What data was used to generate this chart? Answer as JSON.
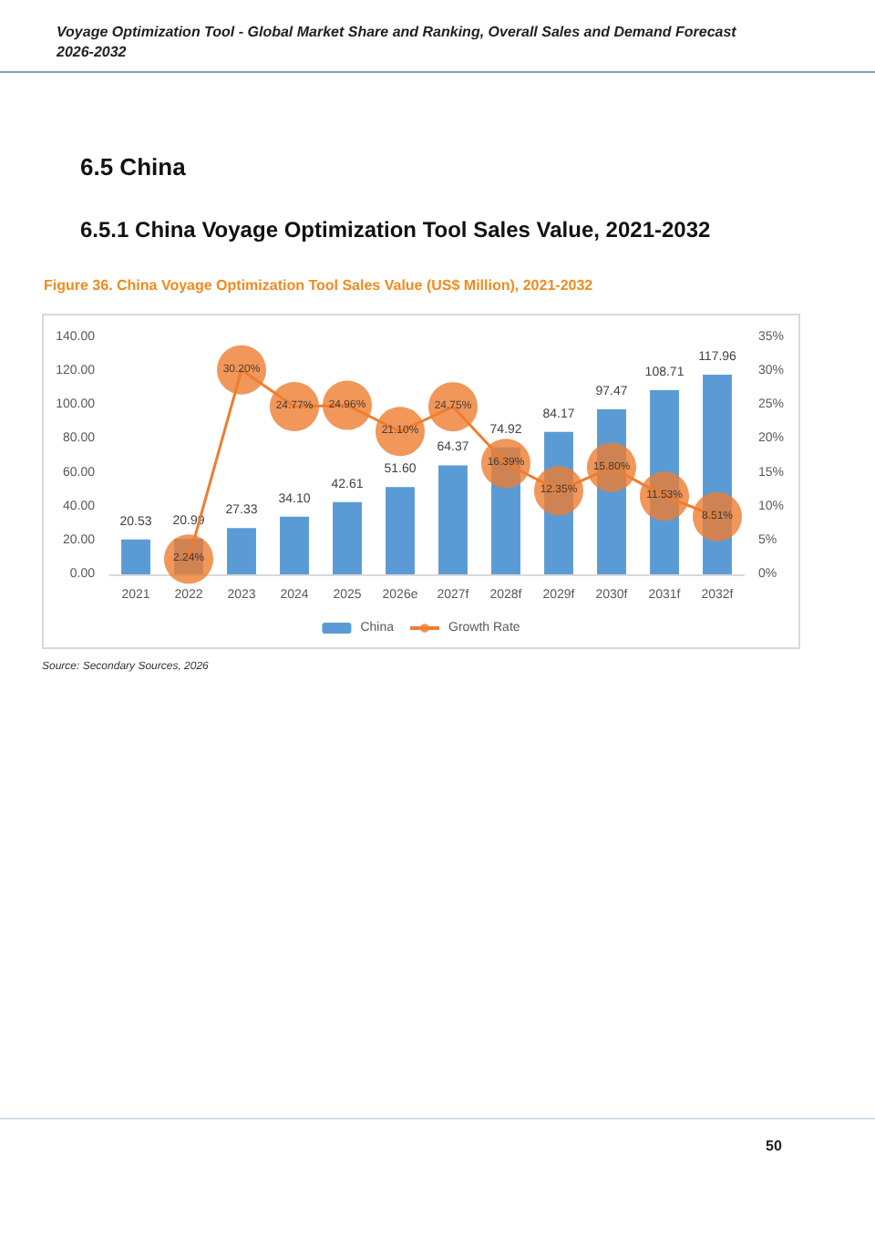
{
  "chart_data": {
    "type": "bar",
    "title": "Figure 36.   China Voyage Optimization Tool Sales Value (US$ Million), 2021-2032",
    "annotations": [
      "Voyage Optimization Tool - Global Market Share and Ranking, Overall Sales and Demand Forecast 2026-2032",
      "6.5  China",
      "6.5.1  China Voyage Optimization Tool Sales Value, 2021-2032",
      "Source: Secondary Sources, 2026",
      "50"
    ],
    "categories": [
      "2021",
      "2022",
      "2023",
      "2024",
      "2025",
      "2026e",
      "2027f",
      "2028f",
      "2029f",
      "2030f",
      "2031f",
      "2032f"
    ],
    "series": [
      {
        "name": "China",
        "color": "#5b9bd5",
        "values": [
          20.53,
          20.99,
          27.33,
          34.1,
          42.61,
          51.6,
          64.37,
          74.92,
          84.17,
          97.47,
          108.71,
          117.96
        ],
        "value_labels": [
          "20.53",
          "20.99",
          "27.33",
          "34.10",
          "42.61",
          "51.60",
          "64.37",
          "74.92",
          "84.17",
          "97.47",
          "108.71",
          "117.96"
        ]
      },
      {
        "name": "Growth Rate",
        "type": "line",
        "axis": "y2",
        "color": "#ed7d31",
        "values": [
          null,
          2.24,
          30.2,
          24.77,
          24.96,
          21.1,
          24.75,
          16.39,
          12.35,
          15.8,
          11.53,
          8.51
        ],
        "value_labels": [
          null,
          "2.24%",
          "30.20%",
          "24.77%",
          "24.96%",
          "21.10%",
          "24.75%",
          "16.39%",
          "12.35%",
          "15.80%",
          "11.53%",
          "8.51%"
        ]
      }
    ],
    "ylim": [
      0,
      140
    ],
    "yticks": [
      {
        "value": 0,
        "label": "0.00"
      },
      {
        "value": 20,
        "label": "20.00"
      },
      {
        "value": 40,
        "label": "40.00"
      },
      {
        "value": 60,
        "label": "60.00"
      },
      {
        "value": 80,
        "label": "80.00"
      },
      {
        "value": 100,
        "label": "100.00"
      },
      {
        "value": 120,
        "label": "120.00"
      },
      {
        "value": 140,
        "label": "140.00"
      }
    ],
    "y2lim": [
      0,
      35
    ],
    "y2ticks": [
      {
        "value": 0,
        "label": "0%"
      },
      {
        "value": 5,
        "label": "5%"
      },
      {
        "value": 10,
        "label": "10%"
      },
      {
        "value": 15,
        "label": "15%"
      },
      {
        "value": 20,
        "label": "20%"
      },
      {
        "value": 25,
        "label": "25%"
      },
      {
        "value": 30,
        "label": "30%"
      },
      {
        "value": 35,
        "label": "35%"
      }
    ],
    "marker": "circle",
    "legend": "bottom"
  }
}
